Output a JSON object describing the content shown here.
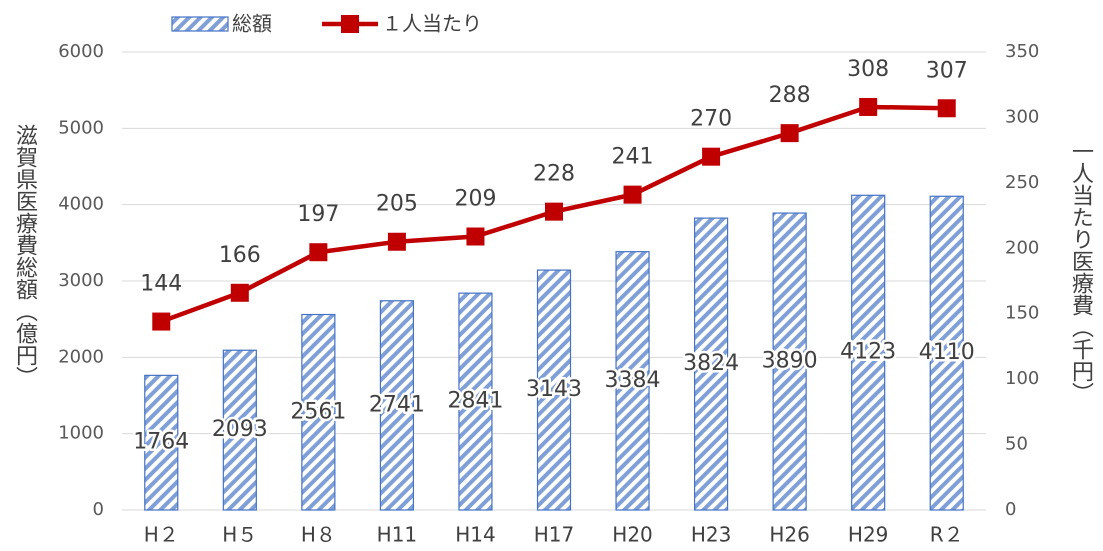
{
  "chart_data": {
    "type": "bar",
    "categories": [
      "H２",
      "H５",
      "H８",
      "H11",
      "H14",
      "H17",
      "H20",
      "H23",
      "H26",
      "H29",
      "R２"
    ],
    "series": [
      {
        "name": "総額",
        "type": "bar",
        "color": "#4472c4",
        "values": [
          1764,
          2093,
          2561,
          2741,
          2841,
          3143,
          3384,
          3824,
          3890,
          4123,
          4110
        ]
      },
      {
        "name": "１人当たり",
        "type": "line",
        "axis": "y2",
        "color": "#c00000",
        "values": [
          144,
          166,
          197,
          205,
          209,
          228,
          241,
          270,
          288,
          308,
          307
        ]
      }
    ],
    "ylabel": "滋賀県医療費総額（億円）",
    "y2label": "一人当たり医療費（千円）",
    "ylim": [
      0,
      6000
    ],
    "yticks": [
      0,
      1000,
      2000,
      3000,
      4000,
      5000,
      6000
    ],
    "y2lim": [
      0,
      350
    ],
    "y2ticks": [
      0,
      50,
      100,
      150,
      200,
      250,
      300,
      350
    ],
    "grid": true,
    "legend": "top"
  }
}
